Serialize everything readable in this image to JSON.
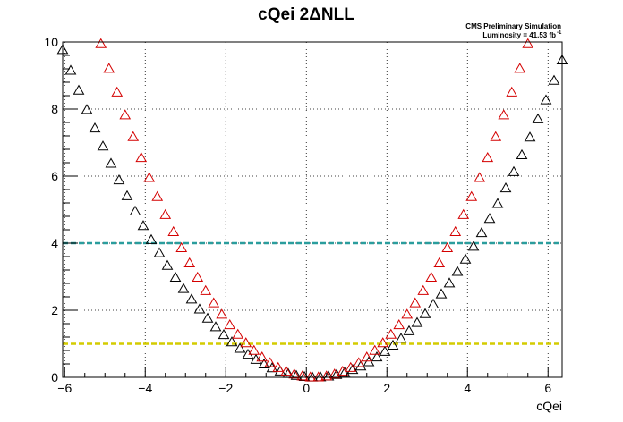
{
  "chart_data": {
    "type": "scatter",
    "title": "cQei 2ΔNLL",
    "annotations": {
      "line1": "CMS Preliminary Simulation",
      "line2": "Luminosity = 41.53 fb",
      "line2_sup": "-1"
    },
    "xlabel": "cQei",
    "ylabel": "",
    "xlim": [
      -6.05,
      6.35
    ],
    "ylim": [
      0,
      10
    ],
    "grid": true,
    "x_ticks": [
      -6,
      -4,
      -2,
      0,
      2,
      4,
      6
    ],
    "y_ticks": [
      0,
      2,
      4,
      6,
      8,
      10
    ],
    "x_tick_labels": [
      "−6",
      "−4",
      "−2",
      "0",
      "2",
      "4",
      "6"
    ],
    "y_tick_labels": [
      "0",
      "2",
      "4",
      "6",
      "8",
      "10"
    ],
    "reference_lines": [
      {
        "y": 4,
        "color": "#2a9d9d"
      },
      {
        "y": 1,
        "color": "#d4cc00"
      }
    ],
    "series": [
      {
        "color": "#000000",
        "marker": "open-triangle",
        "center": 0.2,
        "scale": 0.25,
        "x_range": [
          -6.05,
          6.35
        ],
        "step": 0.2
      },
      {
        "color": "#d40000",
        "marker": "open-triangle",
        "center": 0.2,
        "scale": 0.354,
        "x_range": [
          -5.1,
          5.5
        ],
        "step": 0.2
      }
    ]
  }
}
